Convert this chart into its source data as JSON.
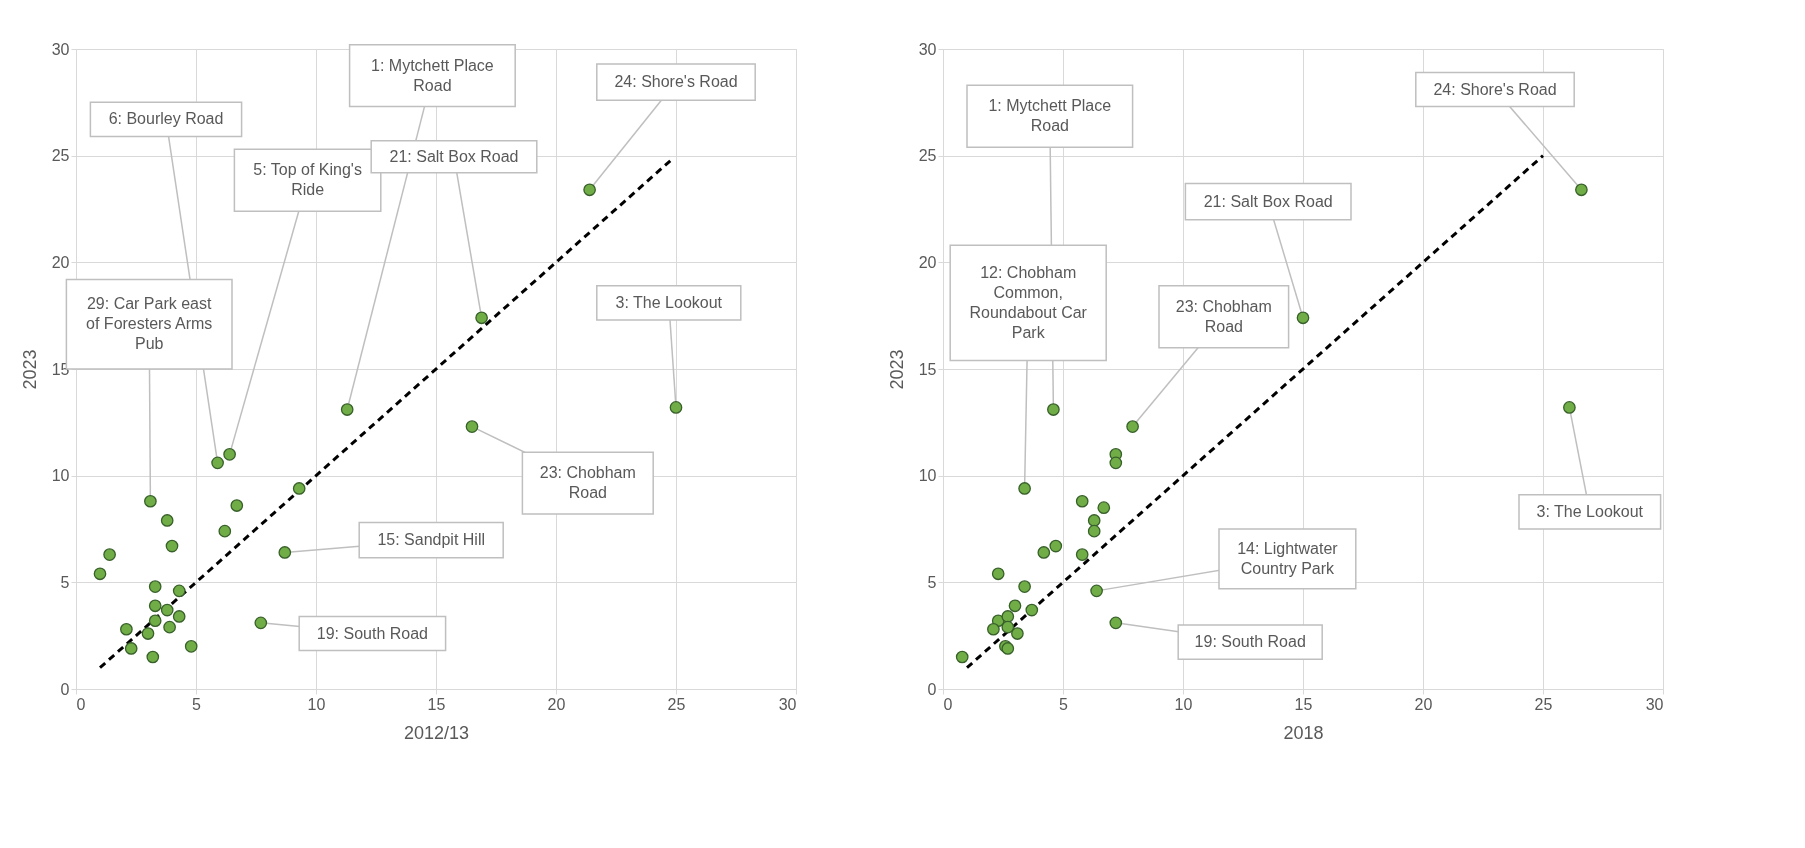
{
  "chart_data": [
    {
      "type": "scatter",
      "xlabel": "2012/13",
      "ylabel": "2023",
      "xlim": [
        0,
        30
      ],
      "ylim": [
        0,
        30
      ],
      "xticks": [
        0,
        5,
        10,
        15,
        20,
        25,
        30
      ],
      "yticks": [
        0,
        5,
        10,
        15,
        20,
        25,
        30
      ],
      "grid": true,
      "series": [
        {
          "color": "#70ad47",
          "marker": "circle",
          "x": [
            1.0,
            1.4,
            3.1,
            3.8,
            4.0,
            3.3,
            4.3,
            3.3,
            3.8,
            3.3,
            4.3,
            2.1,
            3.0,
            3.9,
            2.3,
            3.2,
            4.8,
            5.9,
            6.4,
            6.2,
            6.7,
            9.3,
            8.7,
            7.7,
            11.3,
            16.5,
            16.9,
            21.4,
            25.0
          ],
          "values": [
            5.4,
            6.3,
            8.8,
            7.9,
            6.7,
            4.8,
            4.6,
            3.9,
            3.7,
            3.2,
            3.4,
            2.8,
            2.6,
            2.9,
            1.9,
            1.5,
            2.0,
            10.6,
            11.0,
            7.4,
            8.6,
            9.4,
            6.4,
            3.1,
            13.1,
            12.3,
            17.4,
            23.4,
            13.2
          ]
        },
        {
          "type": "line",
          "color": "#000000",
          "line_style": "dashed",
          "x": [
            1.0,
            24.8
          ],
          "values": [
            1.0,
            24.8
          ]
        }
      ],
      "annotations": [
        {
          "text": "1: Mytchett Place Road",
          "x": 11.3,
          "y": 13.1
        },
        {
          "text": "24: Shore's Road",
          "x": 21.4,
          "y": 23.4
        },
        {
          "text": "6: Bourley Road",
          "x": 5.9,
          "y": 10.6
        },
        {
          "text": "5: Top of King's Ride",
          "x": 6.4,
          "y": 11.0
        },
        {
          "text": "21: Salt Box Road",
          "x": 16.9,
          "y": 17.4
        },
        {
          "text": "29: Car Park east of Foresters Arms Pub",
          "x": 3.1,
          "y": 8.8
        },
        {
          "text": "3: The Lookout",
          "x": 25.0,
          "y": 13.2
        },
        {
          "text": "23: Chobham Road",
          "x": 16.5,
          "y": 12.3
        },
        {
          "text": "15: Sandpit Hill",
          "x": 8.7,
          "y": 6.4
        },
        {
          "text": "19: South Road",
          "x": 7.7,
          "y": 3.1
        }
      ]
    },
    {
      "type": "scatter",
      "xlabel": "2018",
      "ylabel": "2023",
      "xlim": [
        0,
        30
      ],
      "ylim": [
        0,
        30
      ],
      "xticks": [
        0,
        5,
        10,
        15,
        20,
        25,
        30
      ],
      "yticks": [
        0,
        5,
        10,
        15,
        20,
        25,
        30
      ],
      "grid": true,
      "series": [
        {
          "color": "#70ad47",
          "marker": "circle",
          "x": [
            0.8,
            2.3,
            3.4,
            2.3,
            2.1,
            2.7,
            3.0,
            3.7,
            2.7,
            3.1,
            2.6,
            2.7,
            3.4,
            4.6,
            4.2,
            4.7,
            5.8,
            6.3,
            6.3,
            6.7,
            5.8,
            6.4,
            7.2,
            7.2,
            7.2,
            7.9,
            15.0,
            26.1,
            26.6
          ],
          "values": [
            1.5,
            5.4,
            4.8,
            3.2,
            2.8,
            3.4,
            3.9,
            3.7,
            2.9,
            2.6,
            2.0,
            1.9,
            9.4,
            13.1,
            6.4,
            6.7,
            8.8,
            7.9,
            7.4,
            8.5,
            6.3,
            4.6,
            3.1,
            11.0,
            10.6,
            12.3,
            17.4,
            13.2,
            23.4
          ]
        },
        {
          "type": "line",
          "color": "#000000",
          "line_style": "dashed",
          "x": [
            1.0,
            25.0
          ],
          "values": [
            1.0,
            25.0
          ]
        }
      ],
      "annotations": [
        {
          "text": "1: Mytchett Place Road",
          "x": 4.6,
          "y": 13.1
        },
        {
          "text": "24: Shore's Road",
          "x": 26.6,
          "y": 23.4
        },
        {
          "text": "21: Salt Box Road",
          "x": 15.0,
          "y": 17.4
        },
        {
          "text": "12: Chobham Common, Roundabout Car Park",
          "x": 3.4,
          "y": 9.4
        },
        {
          "text": "23: Chobham Road",
          "x": 7.9,
          "y": 12.3
        },
        {
          "text": "3: The Lookout",
          "x": 26.1,
          "y": 13.2
        },
        {
          "text": "14: Lightwater Country Park",
          "x": 6.4,
          "y": 4.6
        },
        {
          "text": "19: South Road",
          "x": 7.2,
          "y": 3.1
        }
      ]
    }
  ]
}
